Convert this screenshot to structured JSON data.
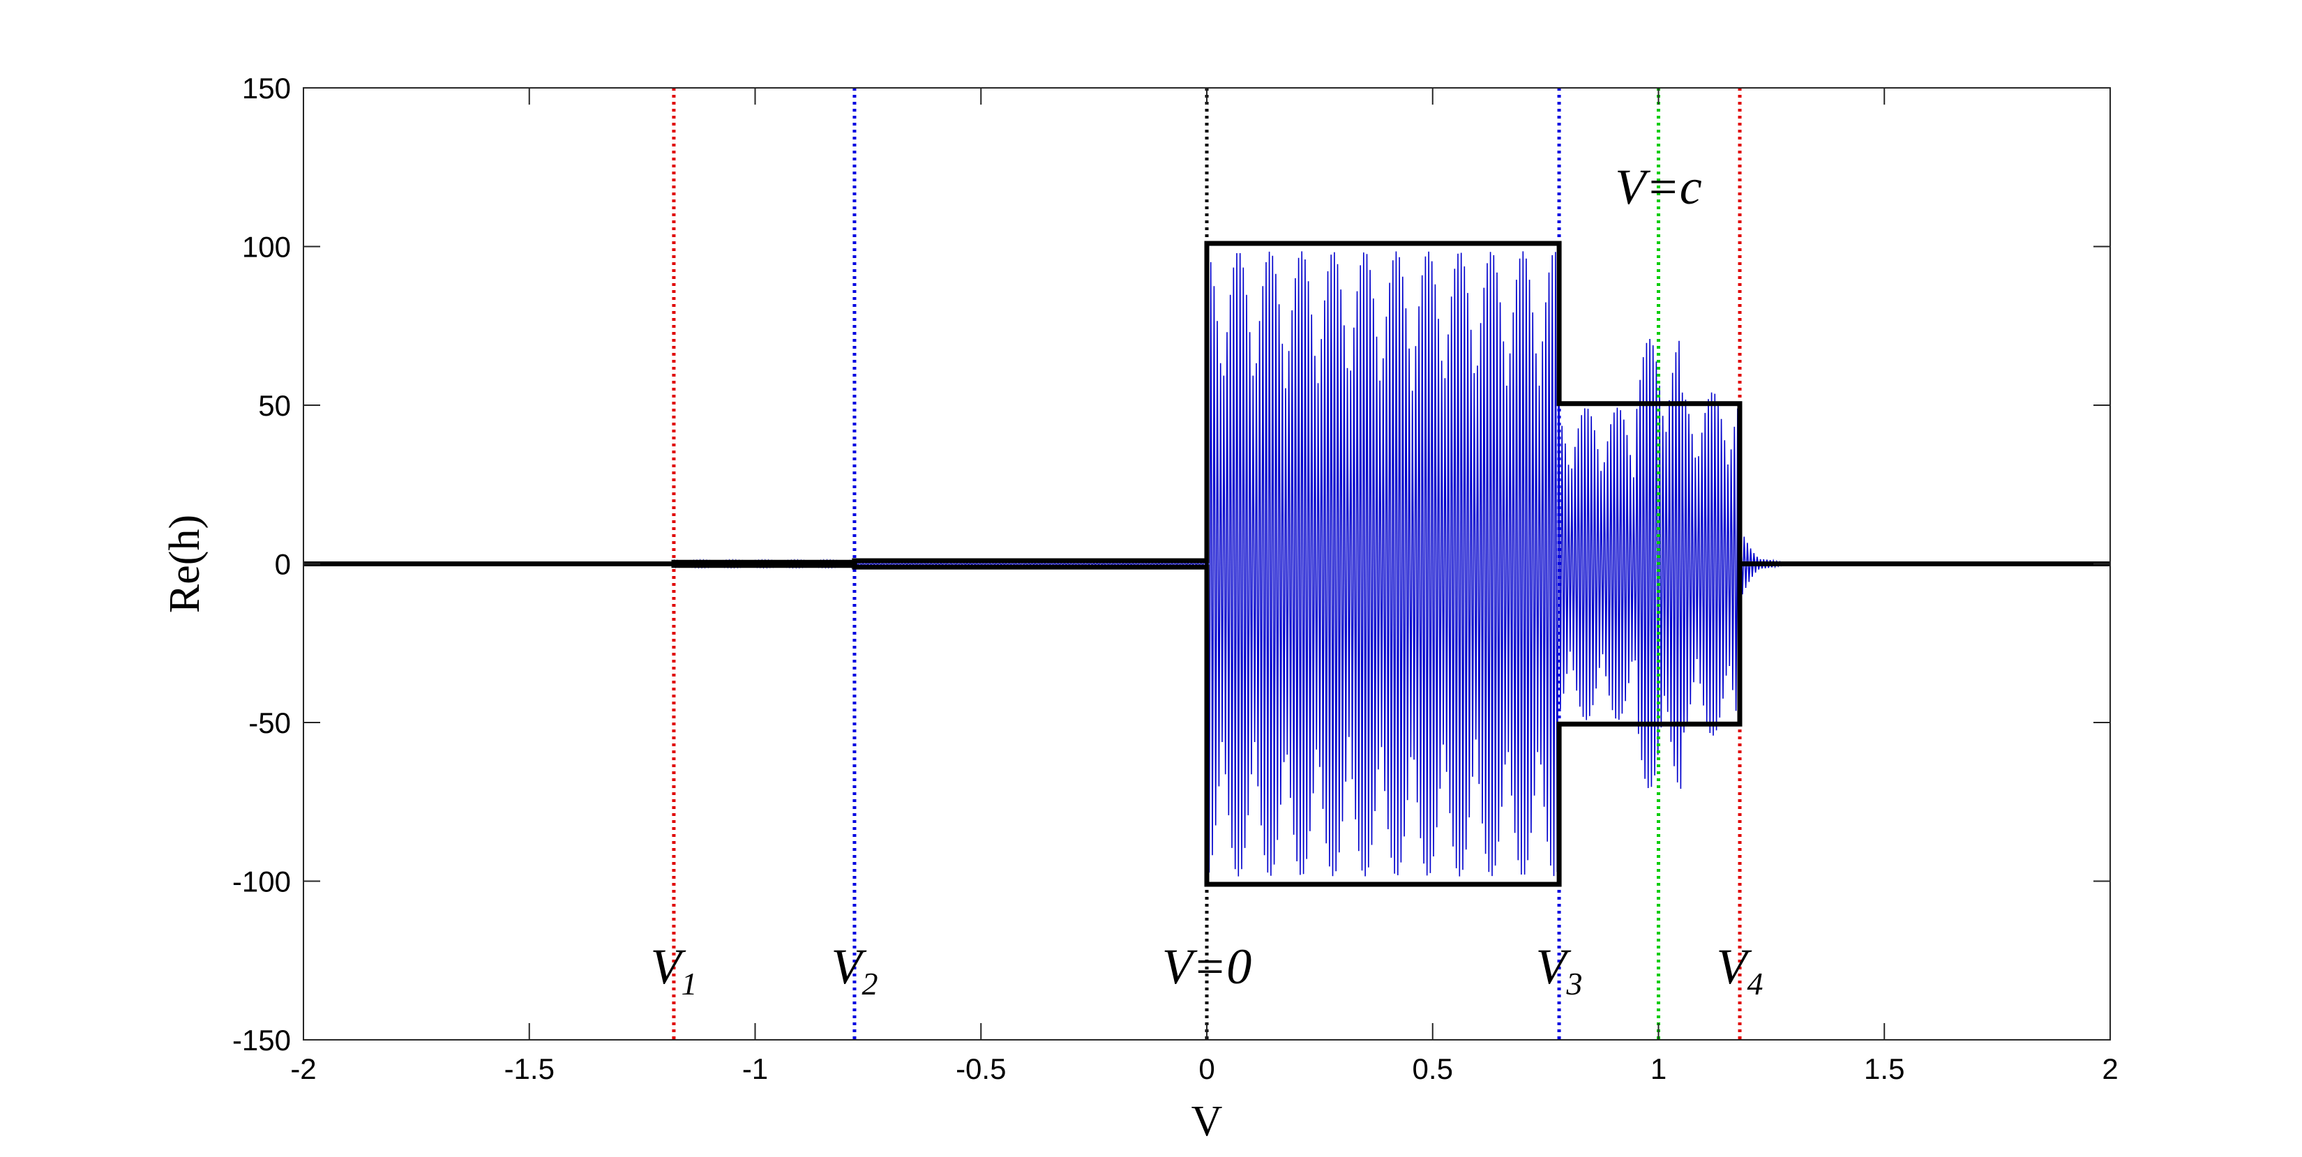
{
  "chart_data": {
    "type": "line",
    "title": "",
    "xlabel": "V",
    "ylabel": "Re(h)",
    "xlim": [
      -2,
      2
    ],
    "ylim": [
      -150,
      150
    ],
    "xticks": [
      -2,
      -1.5,
      -1,
      -0.5,
      0,
      0.5,
      1,
      1.5,
      2
    ],
    "xtick_labels": [
      "-2",
      "-1.5",
      "-1",
      "-0.5",
      "0",
      "0.5",
      "1",
      "1.5",
      "2"
    ],
    "yticks": [
      -150,
      -100,
      -50,
      0,
      50,
      100,
      150
    ],
    "ytick_labels": [
      "-150",
      "-100",
      "-50",
      "0",
      "50",
      "100",
      "150"
    ],
    "grid": false,
    "series": [
      {
        "role": "oscillation",
        "color": "#0000cc",
        "segments": [
          {
            "x0": -1.18,
            "x1": 0.0,
            "amplitude": 1
          },
          {
            "x0": 0.0,
            "x1": 0.78,
            "amplitude": 100
          },
          {
            "x0": 0.78,
            "x1": 0.95,
            "amplitude": 50
          },
          {
            "x0": 0.95,
            "x1": 1.05,
            "amplitude": 72
          },
          {
            "x0": 1.05,
            "x1": 1.18,
            "amplitude": 55
          },
          {
            "x0": 1.18,
            "x1": 1.3,
            "amplitude": 12,
            "decay": true
          }
        ]
      },
      {
        "role": "envelope",
        "color": "#000000",
        "upper": [
          [
            -2,
            0
          ],
          [
            -1.18,
            0
          ],
          [
            -1.18,
            0.5
          ],
          [
            -0.78,
            0.5
          ],
          [
            -0.78,
            1
          ],
          [
            0,
            1
          ],
          [
            0,
            101
          ],
          [
            0.78,
            101
          ],
          [
            0.78,
            50.5
          ],
          [
            1.18,
            50.5
          ],
          [
            1.18,
            0
          ],
          [
            2,
            0
          ]
        ],
        "lower": [
          [
            -2,
            0
          ],
          [
            -1.18,
            0
          ],
          [
            -1.18,
            -0.5
          ],
          [
            -0.78,
            -0.5
          ],
          [
            -0.78,
            -1
          ],
          [
            0,
            -1
          ],
          [
            0,
            -101
          ],
          [
            0.78,
            -101
          ],
          [
            0.78,
            -50.5
          ],
          [
            1.18,
            -50.5
          ],
          [
            1.18,
            0
          ],
          [
            2,
            0
          ]
        ]
      }
    ],
    "reference_lines": [
      {
        "x": -1.18,
        "color": "#e00000",
        "label": "V",
        "subscript": "1"
      },
      {
        "x": -0.78,
        "color": "#0000e0",
        "label": "V",
        "subscript": "2"
      },
      {
        "x": 0.0,
        "color": "#000000",
        "label": "V=0",
        "subscript": ""
      },
      {
        "x": 0.78,
        "color": "#0000e0",
        "label": "V",
        "subscript": "3"
      },
      {
        "x": 1.0,
        "color": "#00cc00",
        "label": "V=c",
        "subscript": ""
      },
      {
        "x": 1.18,
        "color": "#e00000",
        "label": "V",
        "subscript": "4"
      }
    ]
  }
}
